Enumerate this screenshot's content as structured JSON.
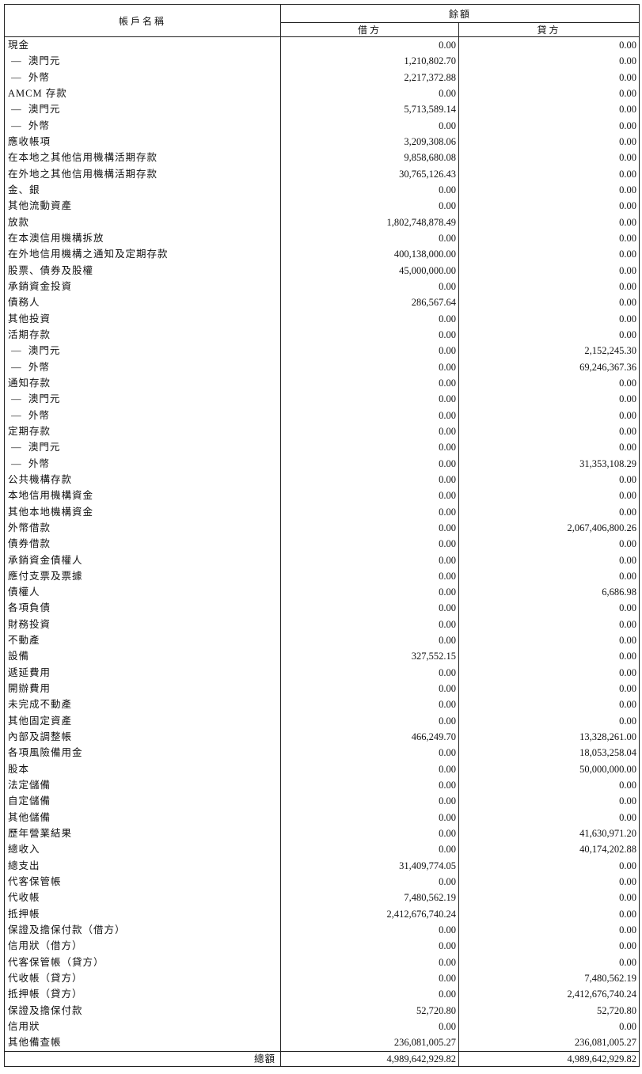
{
  "header": {
    "account_name": "帳戶名稱",
    "balance": "餘額",
    "debit": "借方",
    "credit": "貸方"
  },
  "rows": [
    {
      "name": "現金",
      "debit": "0.00",
      "credit": "0.00"
    },
    {
      "name": " —  澳門元",
      "debit": "1,210,802.70",
      "credit": "0.00"
    },
    {
      "name": " —  外幣",
      "debit": "2,217,372.88",
      "credit": "0.00"
    },
    {
      "name": "AMCM 存款",
      "debit": "0.00",
      "credit": "0.00"
    },
    {
      "name": " —  澳門元",
      "debit": "5,713,589.14",
      "credit": "0.00"
    },
    {
      "name": " —  外幣",
      "debit": "0.00",
      "credit": "0.00"
    },
    {
      "name": "應收帳項",
      "debit": "3,209,308.06",
      "credit": "0.00"
    },
    {
      "name": "在本地之其他信用機構活期存款",
      "debit": "9,858,680.08",
      "credit": "0.00"
    },
    {
      "name": "在外地之其他信用機構活期存款",
      "debit": "30,765,126.43",
      "credit": "0.00"
    },
    {
      "name": "金、銀",
      "debit": "0.00",
      "credit": "0.00"
    },
    {
      "name": "其他流動資產",
      "debit": "0.00",
      "credit": "0.00"
    },
    {
      "name": "放款",
      "debit": "1,802,748,878.49",
      "credit": "0.00"
    },
    {
      "name": "在本澳信用機構拆放",
      "debit": "0.00",
      "credit": "0.00"
    },
    {
      "name": "在外地信用機構之通知及定期存款",
      "debit": "400,138,000.00",
      "credit": "0.00"
    },
    {
      "name": "股票、債券及股權",
      "debit": "45,000,000.00",
      "credit": "0.00"
    },
    {
      "name": "承銷資金投資",
      "debit": "0.00",
      "credit": "0.00"
    },
    {
      "name": "債務人",
      "debit": "286,567.64",
      "credit": "0.00"
    },
    {
      "name": "其他投資",
      "debit": "0.00",
      "credit": "0.00"
    },
    {
      "name": "活期存款",
      "debit": "0.00",
      "credit": "0.00"
    },
    {
      "name": " —  澳門元",
      "debit": "0.00",
      "credit": "2,152,245.30"
    },
    {
      "name": " —  外幣",
      "debit": "0.00",
      "credit": "69,246,367.36"
    },
    {
      "name": "通知存款",
      "debit": "0.00",
      "credit": "0.00"
    },
    {
      "name": " —  澳門元",
      "debit": "0.00",
      "credit": "0.00"
    },
    {
      "name": " —  外幣",
      "debit": "0.00",
      "credit": "0.00"
    },
    {
      "name": "定期存款",
      "debit": "0.00",
      "credit": "0.00"
    },
    {
      "name": " —  澳門元",
      "debit": "0.00",
      "credit": "0.00"
    },
    {
      "name": " —  外幣",
      "debit": "0.00",
      "credit": "31,353,108.29"
    },
    {
      "name": "公共機構存款",
      "debit": "0.00",
      "credit": "0.00"
    },
    {
      "name": "本地信用機構資金",
      "debit": "0.00",
      "credit": "0.00"
    },
    {
      "name": "其他本地機構資金",
      "debit": "0.00",
      "credit": "0.00"
    },
    {
      "name": "外幣借款",
      "debit": "0.00",
      "credit": "2,067,406,800.26"
    },
    {
      "name": "債券借款",
      "debit": "0.00",
      "credit": "0.00"
    },
    {
      "name": "承銷資金債權人",
      "debit": "0.00",
      "credit": "0.00"
    },
    {
      "name": "應付支票及票據",
      "debit": "0.00",
      "credit": "0.00"
    },
    {
      "name": "債權人",
      "debit": "0.00",
      "credit": "6,686.98"
    },
    {
      "name": "各項負債",
      "debit": "0.00",
      "credit": "0.00"
    },
    {
      "name": "財務投資",
      "debit": "0.00",
      "credit": "0.00"
    },
    {
      "name": "不動產",
      "debit": "0.00",
      "credit": "0.00"
    },
    {
      "name": "設備",
      "debit": "327,552.15",
      "credit": "0.00"
    },
    {
      "name": "遞延費用",
      "debit": "0.00",
      "credit": "0.00"
    },
    {
      "name": "開辦費用",
      "debit": "0.00",
      "credit": "0.00"
    },
    {
      "name": "未完成不動產",
      "debit": "0.00",
      "credit": "0.00"
    },
    {
      "name": "其他固定資產",
      "debit": "0.00",
      "credit": "0.00"
    },
    {
      "name": "內部及調整帳",
      "debit": "466,249.70",
      "credit": "13,328,261.00"
    },
    {
      "name": "各項風險備用金",
      "debit": "0.00",
      "credit": "18,053,258.04"
    },
    {
      "name": "股本",
      "debit": "0.00",
      "credit": "50,000,000.00"
    },
    {
      "name": "法定儲備",
      "debit": "0.00",
      "credit": "0.00"
    },
    {
      "name": "自定儲備",
      "debit": "0.00",
      "credit": "0.00"
    },
    {
      "name": "其他儲備",
      "debit": "0.00",
      "credit": "0.00"
    },
    {
      "name": "歷年營業結果",
      "debit": "0.00",
      "credit": "41,630,971.20"
    },
    {
      "name": "總收入",
      "debit": "0.00",
      "credit": "40,174,202.88"
    },
    {
      "name": "總支出",
      "debit": "31,409,774.05",
      "credit": "0.00"
    },
    {
      "name": "代客保管帳",
      "debit": "0.00",
      "credit": "0.00"
    },
    {
      "name": "代收帳",
      "debit": "7,480,562.19",
      "credit": "0.00"
    },
    {
      "name": "抵押帳",
      "debit": "2,412,676,740.24",
      "credit": "0.00"
    },
    {
      "name": "保證及擔保付款（借方）",
      "debit": "0.00",
      "credit": "0.00"
    },
    {
      "name": "信用狀（借方）",
      "debit": "0.00",
      "credit": "0.00"
    },
    {
      "name": "代客保管帳（貸方）",
      "debit": "0.00",
      "credit": "0.00"
    },
    {
      "name": "代收帳（貸方）",
      "debit": "0.00",
      "credit": "7,480,562.19"
    },
    {
      "name": "抵押帳（貸方）",
      "debit": "0.00",
      "credit": "2,412,676,740.24"
    },
    {
      "name": "保證及擔保付款",
      "debit": "52,720.80",
      "credit": "52,720.80"
    },
    {
      "name": "信用狀",
      "debit": "0.00",
      "credit": "0.00"
    },
    {
      "name": "其他備查帳",
      "debit": "236,081,005.27",
      "credit": "236,081,005.27"
    }
  ],
  "total": {
    "label": "總額",
    "debit": "4,989,642,929.82",
    "credit": "4,989,642,929.82"
  }
}
